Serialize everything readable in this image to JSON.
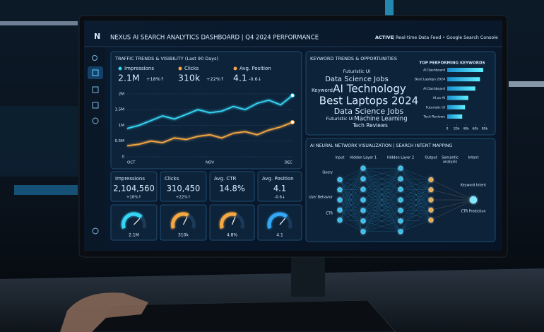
{
  "header": {
    "logo": "N",
    "title": "NEXUS AI SEARCH ANALYTICS DASHBOARD | Q4 2024 PERFORMANCE",
    "status": "ACTIVE",
    "feed": "| Real-time Data Feed • Google Search Console"
  },
  "traffic": {
    "title": "TRAFFIC TRENDS & VISIBILITY (Last 90 Days)",
    "kpis": [
      {
        "label": "Impressions",
        "value": "2.1M",
        "change": "+18%↑"
      },
      {
        "label": "Clicks",
        "value": "310k",
        "change": "+22%↑"
      },
      {
        "label": "Avg. Position",
        "value": "4.1",
        "change": "-0.6↓"
      }
    ]
  },
  "cards": [
    {
      "label": "Impressions",
      "value": "2,104,560",
      "change": "+18%↑"
    },
    {
      "label": "Clicks",
      "value": "310,450",
      "change": "+22%↑"
    },
    {
      "label": "Avg. CTR",
      "value": "14.8%"
    },
    {
      "label": "Avg. Position",
      "value": "4.1",
      "change": "-0.6↓"
    }
  ],
  "keywords": {
    "title": "KEYWORD TRENDS & OPPORTUNITIES",
    "cloud": [
      "Futuristic UI",
      "Data Science Jobs",
      "Keyword",
      "AI Technology",
      "Best Laptops 2024",
      "Data Science Jobs",
      "Futuristic UI",
      "Machine Learning",
      "Tech Reviews"
    ]
  },
  "network": {
    "title": "AI NEURAL NETWORK VISUALIZATION | SEARCH INTENT MAPPING",
    "layers": [
      "Input",
      "Hidden Layer 1",
      "Hidden Layer 2",
      "Output",
      "Intent"
    ],
    "semantic": [
      "Semantic",
      "analysis"
    ],
    "inputs": [
      "Query",
      "User Behavior",
      "CTR"
    ],
    "outputs": [
      "Keyword Intent",
      "CTR Prediction"
    ]
  },
  "chart_data": [
    {
      "type": "line",
      "categories": [
        "OCT",
        null,
        null,
        null,
        null,
        null,
        null,
        "NOV",
        null,
        null,
        null,
        null,
        null,
        null,
        "DEC"
      ],
      "series": [
        {
          "name": "Impressions",
          "color": "#35d6f5",
          "values": [
            900000,
            1000000,
            1150000,
            1300000,
            1200000,
            1350000,
            1500000,
            1400000,
            1450000,
            1600000,
            1500000,
            1700000,
            1800000,
            1650000,
            1950000
          ]
        },
        {
          "name": "Clicks",
          "color": "#f5a742",
          "values": [
            350000,
            400000,
            500000,
            450000,
            600000,
            550000,
            650000,
            700000,
            600000,
            750000,
            800000,
            700000,
            850000,
            950000,
            1100000
          ]
        }
      ],
      "ylim": [
        0,
        2200000
      ],
      "yticks": [
        0,
        {
          "value": 500000,
          "label": "0.5M"
        },
        {
          "value": 1000000,
          "label": "1M"
        },
        {
          "value": 1500000,
          "label": "1.5M"
        },
        {
          "value": 2000000,
          "label": "2M"
        }
      ],
      "grid": true
    },
    {
      "type": "hbar",
      "title": "TOP PERFORMING KEYWORDS",
      "categories": [
        "AI Dashboard",
        "Best Laptops 2024",
        "AI Dashboard",
        "AI.xx AI",
        "Futuristic UI",
        "Tech Reviews"
      ],
      "values": [
        77000,
        70000,
        60000,
        45000,
        38000,
        32000
      ],
      "color": "#35d6f5",
      "xlim": [
        0,
        80000
      ],
      "xticks": [
        0,
        {
          "value": 20000,
          "label": "20k"
        },
        {
          "value": 40000,
          "label": "40k"
        },
        {
          "value": 60000,
          "label": "60k"
        },
        {
          "value": 80000,
          "label": "80k"
        }
      ]
    },
    {
      "type": "gauge",
      "values": [
        2100000
      ],
      "value_labels": [
        "2.1M"
      ],
      "ylim": [
        0,
        3000000
      ],
      "color": "#35d6f5"
    },
    {
      "type": "gauge",
      "values": [
        310450
      ],
      "value_labels": [
        "310k"
      ],
      "ylim": [
        0,
        500000
      ],
      "color": "#f5a742"
    },
    {
      "type": "gauge",
      "values": [
        4.8
      ],
      "value_labels": [
        "4.8%"
      ],
      "ylim": [
        0,
        8
      ],
      "color": "#f5a742"
    },
    {
      "type": "gauge",
      "values": [
        4.1
      ],
      "value_labels": [
        "4.1"
      ],
      "ylim": [
        0,
        6
      ],
      "color": "#35a8f5"
    }
  ]
}
